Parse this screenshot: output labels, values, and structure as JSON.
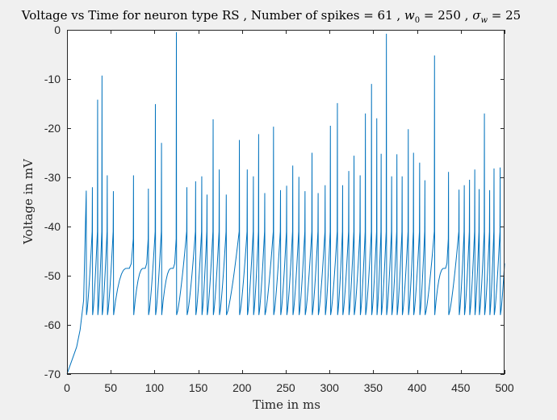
{
  "chart_data": {
    "type": "line",
    "title": "Voltage vs Time for neuron type RS , Number of spikes = 61 , w₀ = 250 , σ_w = 25",
    "title_parts": {
      "main": "Voltage vs Time for neuron type RS , Number of spikes = 61 , ",
      "w_symbol": "w",
      "w_subscript": "0",
      "w_value": " = 250 , ",
      "sigma_symbol": "σ",
      "sigma_subscript": "w",
      "sigma_value": " = 25"
    },
    "xlabel": "Time in ms",
    "ylabel": "Voltage in mV",
    "xlim": [
      0,
      500
    ],
    "ylim": [
      -70,
      0
    ],
    "xticks": [
      0,
      50,
      100,
      150,
      200,
      250,
      300,
      350,
      400,
      450,
      500
    ],
    "yticks": [
      0,
      -10,
      -20,
      -30,
      -40,
      -50,
      -60,
      -70
    ],
    "grid": false,
    "line_color": "#0072bd",
    "reset_voltage": -58,
    "onset": {
      "t": [
        0,
        3,
        7,
        11,
        15,
        19
      ],
      "v": [
        -70,
        -68.5,
        -66.5,
        -64.5,
        -61,
        -55
      ]
    },
    "spikes": [
      {
        "t": 22,
        "peak": -32.7
      },
      {
        "t": 29,
        "peak": -32.0
      },
      {
        "t": 35,
        "peak": -14.2
      },
      {
        "t": 40,
        "peak": -9.3
      },
      {
        "t": 46,
        "peak": -29.6
      },
      {
        "t": 53,
        "peak": -32.8
      },
      {
        "t": 76,
        "peak": -29.6
      },
      {
        "t": 93,
        "peak": -32.3
      },
      {
        "t": 101,
        "peak": -15.1
      },
      {
        "t": 108,
        "peak": -23.0
      },
      {
        "t": 125,
        "peak": -0.5
      },
      {
        "t": 137,
        "peak": -32.0
      },
      {
        "t": 147,
        "peak": -30.8
      },
      {
        "t": 154,
        "peak": -29.8
      },
      {
        "t": 160,
        "peak": -33.5
      },
      {
        "t": 167,
        "peak": -18.2
      },
      {
        "t": 174,
        "peak": -28.4
      },
      {
        "t": 182,
        "peak": -33.5
      },
      {
        "t": 197,
        "peak": -22.4
      },
      {
        "t": 206,
        "peak": -28.4
      },
      {
        "t": 213,
        "peak": -29.8
      },
      {
        "t": 219,
        "peak": -21.2
      },
      {
        "t": 226,
        "peak": -33.2
      },
      {
        "t": 236,
        "peak": -19.7
      },
      {
        "t": 244,
        "peak": -32.6
      },
      {
        "t": 251,
        "peak": -31.7
      },
      {
        "t": 258,
        "peak": -27.6
      },
      {
        "t": 265,
        "peak": -29.9
      },
      {
        "t": 272,
        "peak": -32.8
      },
      {
        "t": 280,
        "peak": -25.0
      },
      {
        "t": 287,
        "peak": -33.2
      },
      {
        "t": 295,
        "peak": -31.6
      },
      {
        "t": 301,
        "peak": -19.5
      },
      {
        "t": 309,
        "peak": -14.9
      },
      {
        "t": 315,
        "peak": -31.6
      },
      {
        "t": 322,
        "peak": -28.7
      },
      {
        "t": 328,
        "peak": -25.6
      },
      {
        "t": 335,
        "peak": -29.6
      },
      {
        "t": 341,
        "peak": -17.0
      },
      {
        "t": 348,
        "peak": -11.0
      },
      {
        "t": 354,
        "peak": -18.0
      },
      {
        "t": 359,
        "peak": -25.2
      },
      {
        "t": 365,
        "peak": -0.8
      },
      {
        "t": 371,
        "peak": -29.8
      },
      {
        "t": 377,
        "peak": -25.3
      },
      {
        "t": 383,
        "peak": -29.8
      },
      {
        "t": 390,
        "peak": -20.2
      },
      {
        "t": 396,
        "peak": -25.0
      },
      {
        "t": 403,
        "peak": -27.0
      },
      {
        "t": 409,
        "peak": -30.6
      },
      {
        "t": 420,
        "peak": -5.2
      },
      {
        "t": 436,
        "peak": -28.9
      },
      {
        "t": 448,
        "peak": -32.5
      },
      {
        "t": 454,
        "peak": -31.6
      },
      {
        "t": 460,
        "peak": -30.5
      },
      {
        "t": 466,
        "peak": -28.4
      },
      {
        "t": 471,
        "peak": -32.4
      },
      {
        "t": 477,
        "peak": -17.0
      },
      {
        "t": 483,
        "peak": -32.6
      },
      {
        "t": 488,
        "peak": -28.2
      },
      {
        "t": 495,
        "peak": -28.0
      }
    ]
  }
}
